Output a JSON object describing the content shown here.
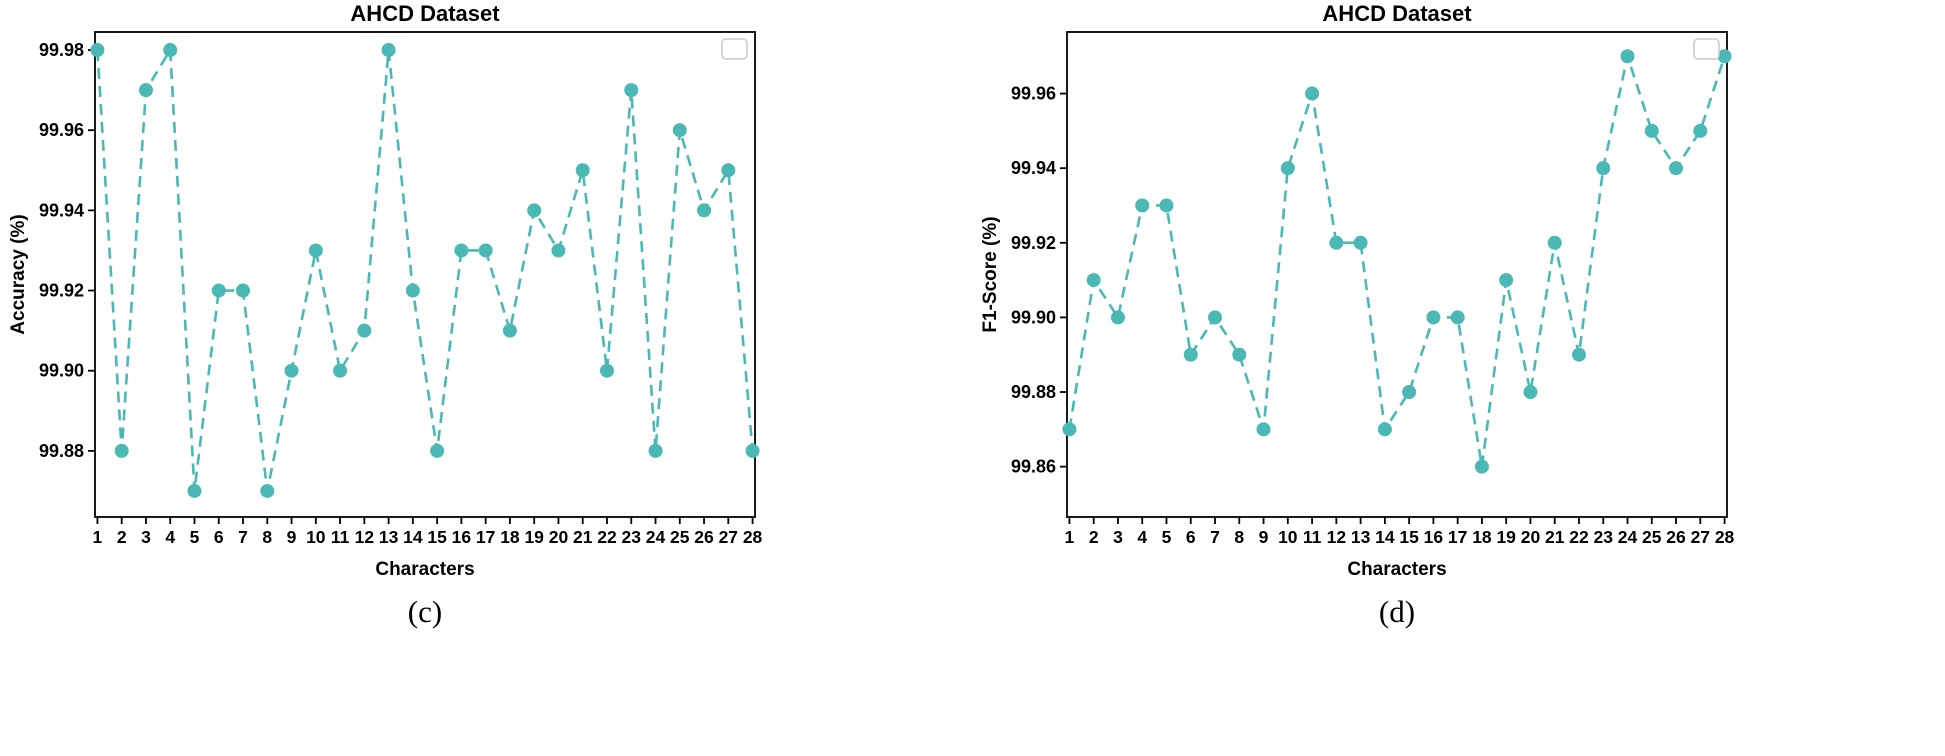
{
  "page": {
    "background": "#ffffff"
  },
  "chart_data": [
    {
      "type": "line",
      "title": "AHCD Dataset",
      "xlabel": "Characters",
      "ylabel": "Accuracy (%)",
      "caption": "(c)",
      "line_color": "#4ab8b5",
      "line_style": "dashed",
      "marker": "circle",
      "legend": {
        "visible": true,
        "entries": [],
        "border_color": "#cccccc",
        "position": "upper right"
      },
      "grid": false,
      "x": [
        1,
        2,
        3,
        4,
        5,
        6,
        7,
        8,
        9,
        10,
        11,
        12,
        13,
        14,
        15,
        16,
        17,
        18,
        19,
        20,
        21,
        22,
        23,
        24,
        25,
        26,
        27,
        28
      ],
      "values": [
        99.98,
        99.88,
        99.97,
        99.98,
        99.87,
        99.92,
        99.92,
        99.87,
        99.9,
        99.93,
        99.9,
        99.91,
        99.98,
        99.92,
        99.88,
        99.93,
        99.93,
        99.91,
        99.94,
        99.93,
        99.95,
        99.9,
        99.97,
        99.88,
        99.96,
        99.94,
        99.95,
        99.88
      ],
      "yticks": [
        99.88,
        99.9,
        99.92,
        99.94,
        99.96,
        99.98
      ],
      "ylim": [
        99.8635,
        99.9845
      ],
      "xlim": [
        0.9,
        28.1
      ]
    },
    {
      "type": "line",
      "title": "AHCD Dataset",
      "xlabel": "Characters",
      "ylabel": "F1-Score (%)",
      "caption": "(d)",
      "line_color": "#4ab8b5",
      "line_style": "dashed",
      "marker": "circle",
      "legend": {
        "visible": true,
        "entries": [],
        "border_color": "#cccccc",
        "position": "upper right"
      },
      "grid": false,
      "x": [
        1,
        2,
        3,
        4,
        5,
        6,
        7,
        8,
        9,
        10,
        11,
        12,
        13,
        14,
        15,
        16,
        17,
        18,
        19,
        20,
        21,
        22,
        23,
        24,
        25,
        26,
        27,
        28
      ],
      "values": [
        99.87,
        99.91,
        99.9,
        99.93,
        99.93,
        99.89,
        99.9,
        99.89,
        99.87,
        99.94,
        99.96,
        99.92,
        99.92,
        99.87,
        99.88,
        99.9,
        99.9,
        99.86,
        99.91,
        99.88,
        99.92,
        99.89,
        99.94,
        99.97,
        99.95,
        99.94,
        99.95,
        99.97
      ],
      "yticks": [
        99.86,
        99.88,
        99.9,
        99.92,
        99.94,
        99.96
      ],
      "ylim": [
        99.8465,
        99.9765
      ],
      "xlim": [
        0.9,
        28.1
      ]
    }
  ]
}
